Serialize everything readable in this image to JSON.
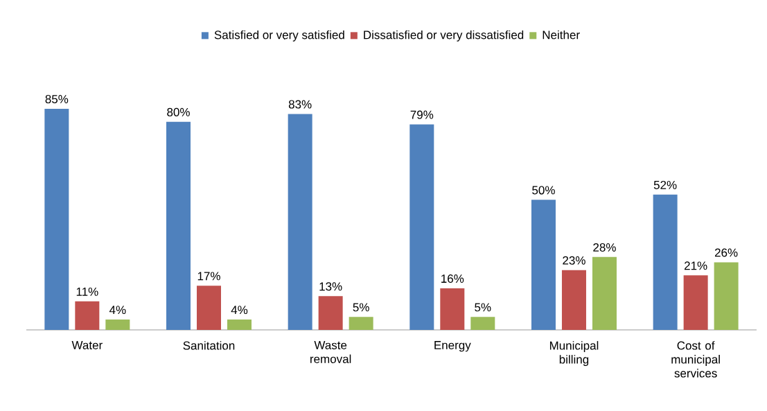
{
  "chart_data": {
    "type": "bar",
    "categories": [
      "Water",
      "Sanitation",
      "Waste removal",
      "Energy",
      "Municipal billing",
      "Cost of municipal services"
    ],
    "series": [
      {
        "name": "Satisfied or very satisfied",
        "color": "#4f81bd",
        "values": [
          85,
          80,
          83,
          79,
          50,
          52
        ],
        "value_labels": [
          "85%",
          "80%",
          "83%",
          "79%",
          "50%",
          "52%"
        ]
      },
      {
        "name": "Dissatisfied or very dissatisfied",
        "color": "#c0504d",
        "values": [
          11,
          17,
          13,
          16,
          23,
          21
        ],
        "value_labels": [
          "11%",
          "17%",
          "13%",
          "16%",
          "23%",
          "21%"
        ]
      },
      {
        "name": "Neither",
        "color": "#9bbb59",
        "values": [
          4,
          4,
          5,
          5,
          28,
          26
        ],
        "value_labels": [
          "4%",
          "4%",
          "5%",
          "5%",
          "28%",
          "26%"
        ]
      }
    ],
    "legend": "top"
  }
}
